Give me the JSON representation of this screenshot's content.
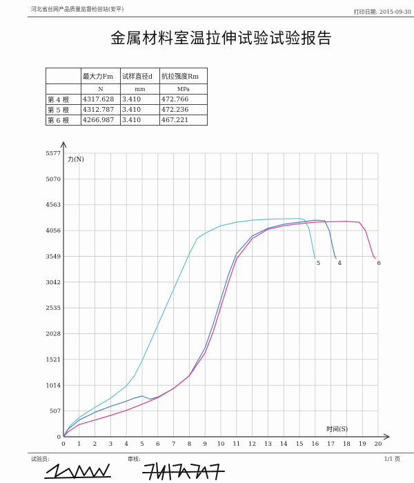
{
  "header": {
    "org": "河北省丝网产品质量监督检验站(安平)",
    "print_date": "打印日期: 2015-09-30"
  },
  "title": "金属材料室温拉伸试验试验报告",
  "table": {
    "headers": [
      "",
      "最大力Fm",
      "试样直径d",
      "抗拉强度Rm"
    ],
    "units": [
      "",
      "N",
      "mm",
      "MPa"
    ],
    "rows": [
      [
        "第 4 根",
        "4317.628",
        "3.410",
        "472.766"
      ],
      [
        "第 5 根",
        "4312.787",
        "3.410",
        "472.236"
      ],
      [
        "第 6 根",
        "4266.987",
        "3.410",
        "467.221"
      ]
    ]
  },
  "chart_data": {
    "type": "line",
    "ylabel": "力(N)",
    "xlabel": "时间(S)",
    "xlim": [
      0,
      20
    ],
    "ylim": [
      0,
      5577
    ],
    "x_ticks": [
      "0",
      "1",
      "2",
      "3",
      "4",
      "5",
      "6",
      "7",
      "8",
      "9",
      "10",
      "11",
      "12",
      "13",
      "14",
      "15",
      "16",
      "17",
      "18",
      "19",
      "20"
    ],
    "y_ticks": [
      "0",
      "507",
      "1014",
      "1521",
      "2028",
      "2535",
      "3042",
      "3549",
      "4056",
      "4563",
      "5070",
      "5577"
    ],
    "grid": true,
    "series": [
      {
        "name": "5",
        "color": "#5fc0d4",
        "x": [
          0,
          0.2,
          0.5,
          1,
          2,
          3,
          4,
          4.5,
          5,
          5.5,
          6,
          6.5,
          7,
          7.5,
          8,
          8.5,
          9,
          9.5,
          10,
          11,
          12,
          13,
          14,
          15,
          15.3,
          15.6,
          15.8,
          15.95,
          16.0
        ],
        "y": [
          0,
          120,
          240,
          380,
          580,
          760,
          1000,
          1200,
          1500,
          1850,
          2200,
          2550,
          2900,
          3250,
          3600,
          3900,
          4000,
          4080,
          4150,
          4220,
          4260,
          4280,
          4285,
          4290,
          4270,
          4100,
          3800,
          3550,
          3500
        ]
      },
      {
        "name": "4",
        "color": "#4a80c0",
        "x": [
          0,
          0.3,
          1,
          2,
          3,
          4,
          4.5,
          5,
          5.5,
          6,
          7,
          8,
          9,
          9.5,
          10,
          10.5,
          11,
          12,
          13,
          14,
          15,
          16,
          16.6,
          16.9,
          17.1,
          17.25,
          17.35
        ],
        "y": [
          0,
          150,
          330,
          480,
          600,
          700,
          760,
          800,
          740,
          780,
          950,
          1200,
          1750,
          2200,
          2700,
          3200,
          3600,
          3950,
          4100,
          4180,
          4220,
          4260,
          4250,
          4050,
          3750,
          3550,
          3500
        ]
      },
      {
        "name": "6",
        "color": "#d23c8e",
        "x": [
          0,
          0.3,
          1,
          2,
          3,
          4,
          5,
          6,
          7,
          8,
          9,
          9.5,
          10,
          10.5,
          11,
          12,
          13,
          14,
          15,
          16,
          17,
          18,
          18.8,
          19.2,
          19.5,
          19.7,
          19.85
        ],
        "y": [
          0,
          100,
          240,
          330,
          420,
          520,
          640,
          770,
          950,
          1200,
          1650,
          2050,
          2550,
          3050,
          3500,
          3900,
          4080,
          4150,
          4190,
          4220,
          4230,
          4235,
          4220,
          4050,
          3750,
          3550,
          3500
        ]
      }
    ],
    "end_labels": [
      "5",
      "4",
      "6"
    ]
  },
  "footer": {
    "tester_label": "试验员:",
    "reviewer_label": "审核:",
    "page": "1/1 页"
  },
  "colors": {
    "grid": "#c8c8c8",
    "axis": "#333333",
    "ink": "#111111"
  }
}
